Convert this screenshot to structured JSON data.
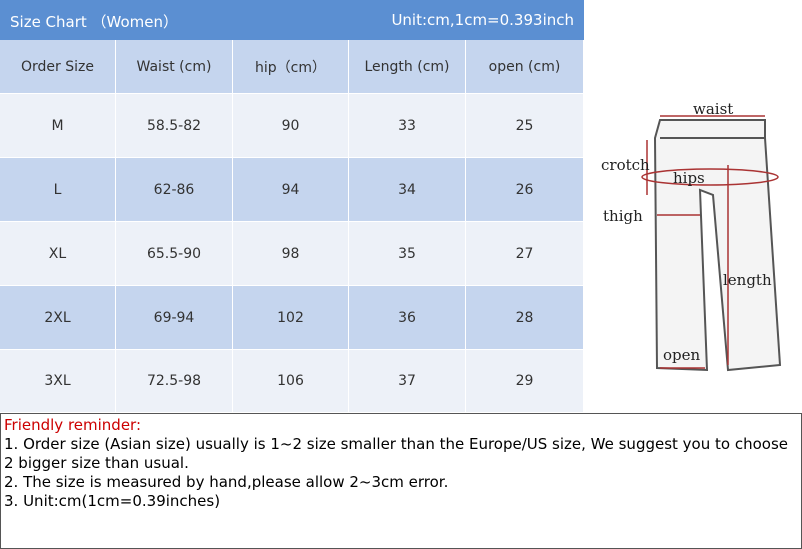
{
  "header": {
    "title": "Size Chart （Women）",
    "unit": "Unit:cm,1cm=0.393inch"
  },
  "table": {
    "columns": [
      "Order Size",
      "Waist (cm)",
      "hip（cm）",
      "Length (cm)",
      "open (cm)"
    ],
    "rows": [
      [
        "M",
        "58.5-82",
        90,
        33,
        25
      ],
      [
        "L",
        "62-86",
        94,
        34,
        26
      ],
      [
        "XL",
        "65.5-90",
        98,
        35,
        27
      ],
      [
        "2XL",
        "69-94",
        102,
        36,
        28
      ],
      [
        "3XL",
        "72.5-98",
        106,
        37,
        29
      ]
    ]
  },
  "diagram": {
    "labels": [
      "waist",
      "crotch",
      "hips",
      "thigh",
      "length",
      "open"
    ]
  },
  "reminder": {
    "title": "Friendly reminder:",
    "lines": [
      "1. Order size (Asian size) usually is 1~2 size smaller than the Europe/US size, We suggest you to choose 2 bigger size than usual.",
      "2. The size is measured by hand,please allow 2~3cm error.",
      "3. Unit:cm(1cm=0.39inches)"
    ]
  }
}
